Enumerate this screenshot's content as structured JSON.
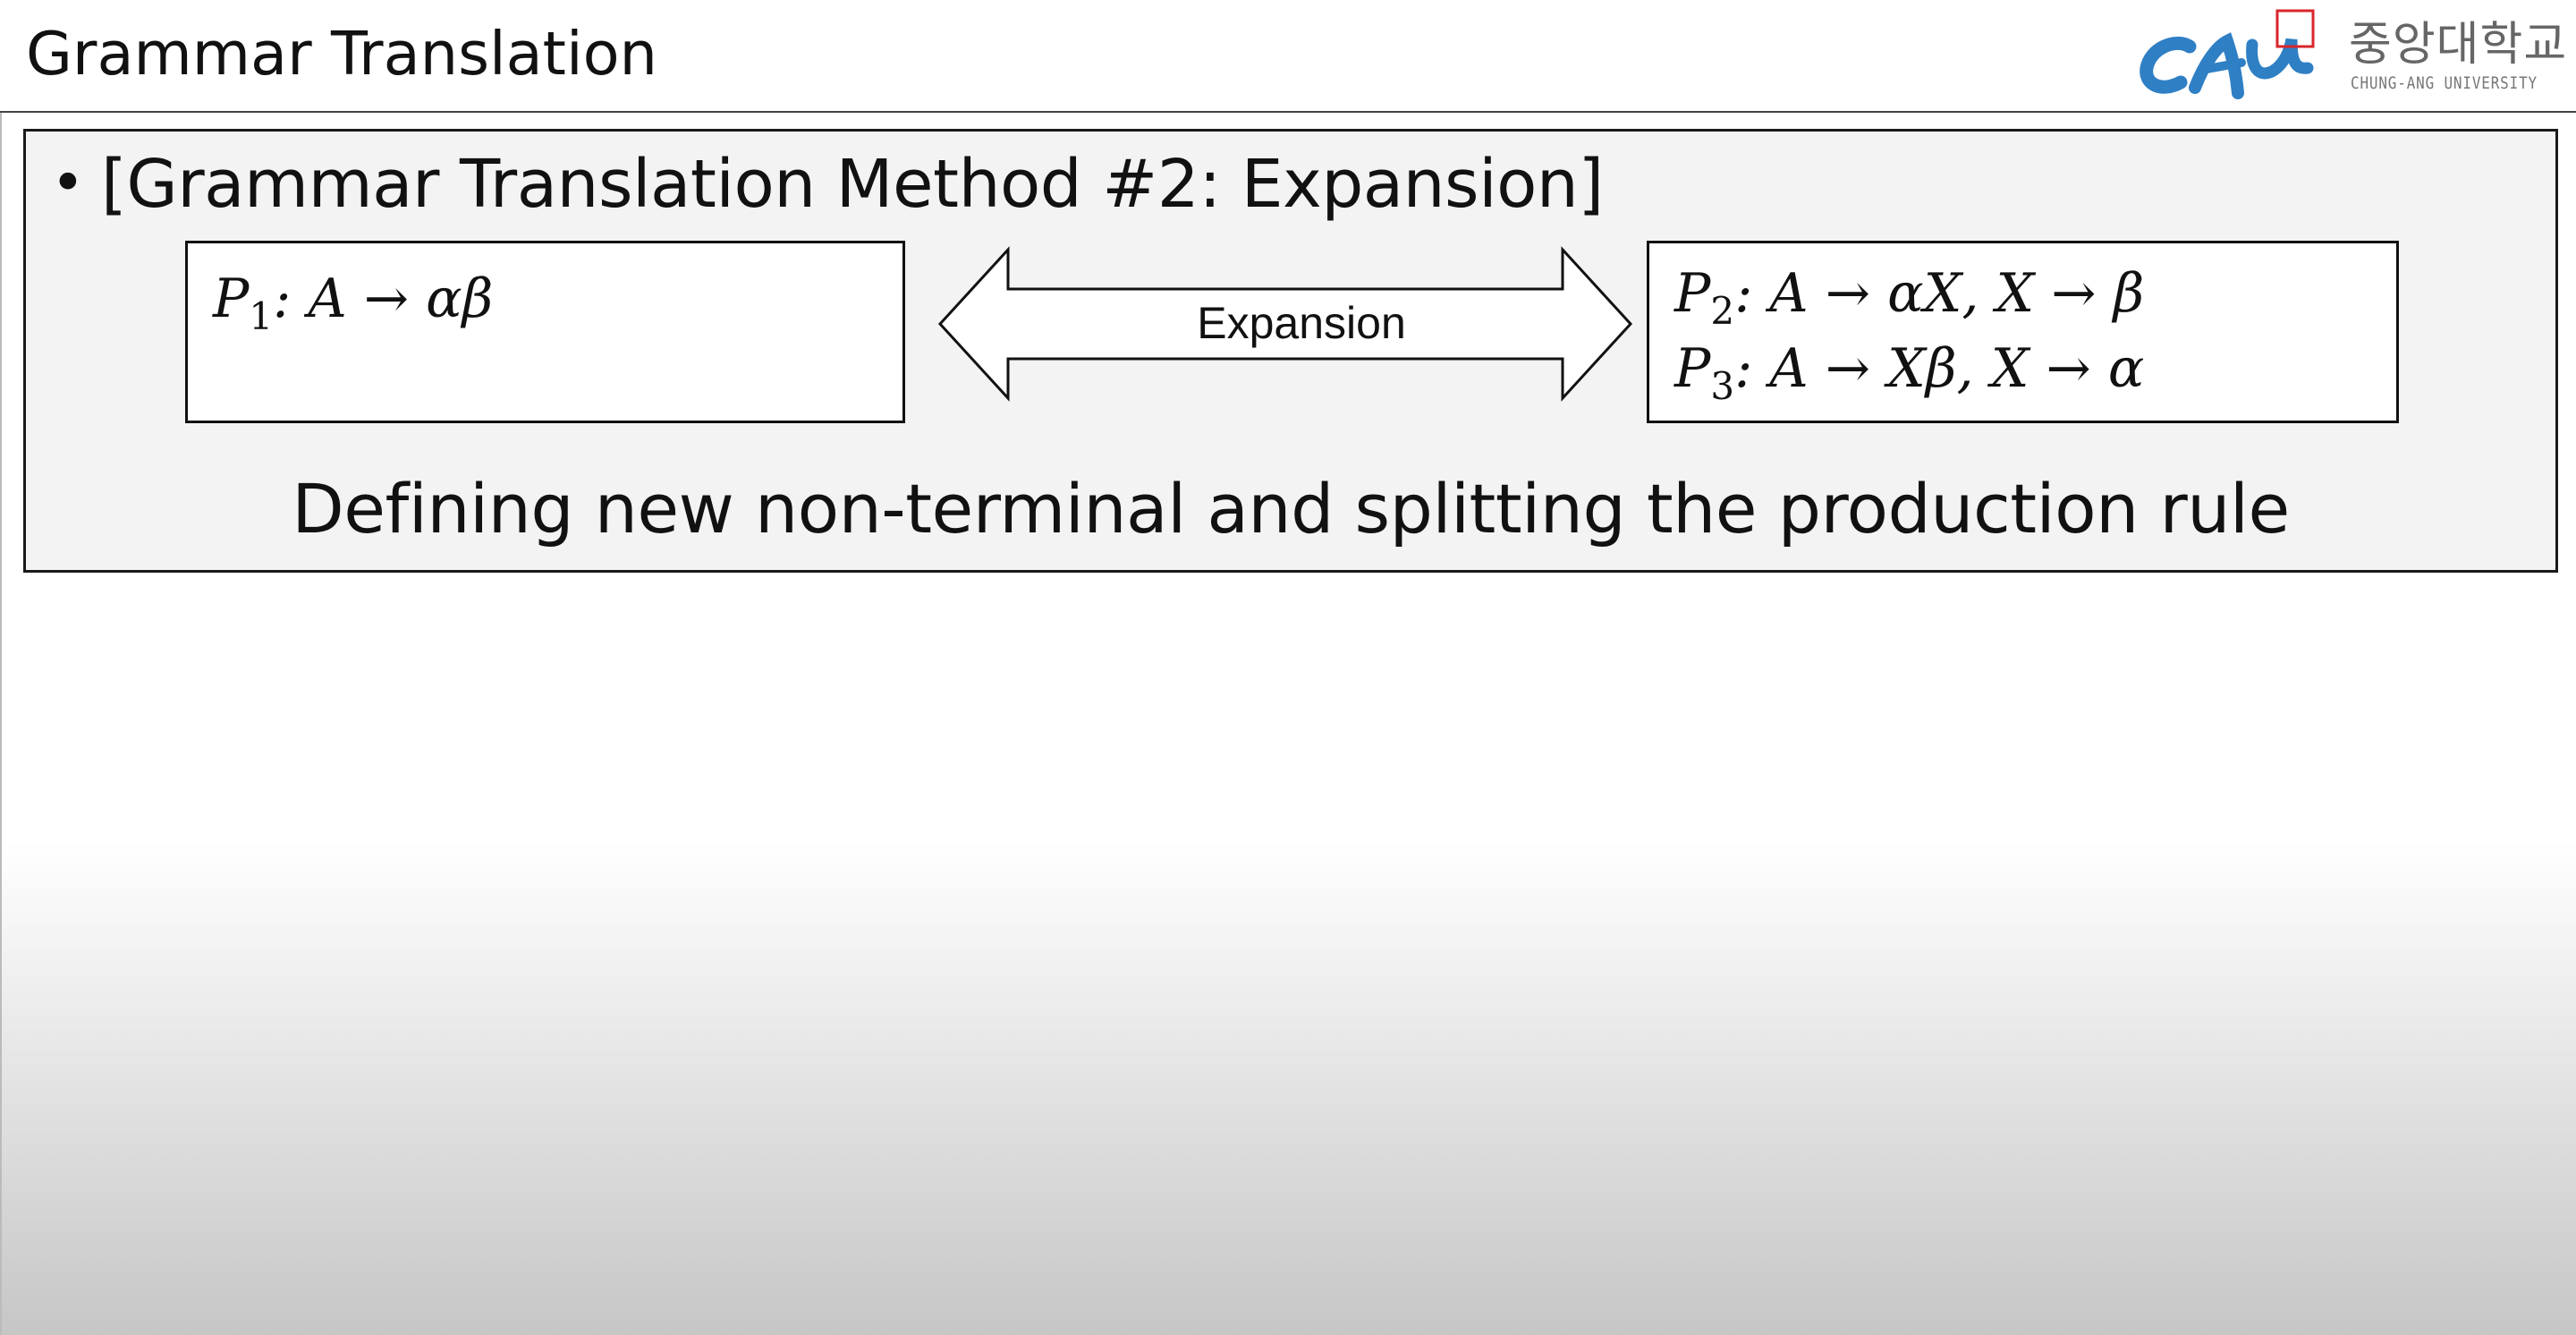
{
  "slide": {
    "title": "Grammar Translation"
  },
  "logo": {
    "wordmark": "CAU",
    "korean_name": "중앙대학교",
    "english_name": "CHUNG-ANG UNIVERSITY",
    "brand_color": "#2f7fc4",
    "accent_color": "#d9262b"
  },
  "content": {
    "bullet": "•",
    "heading": "[Grammar Translation Method #2: Expansion]",
    "left_rule": {
      "label": "P",
      "index": "1",
      "body": ": A → αβ"
    },
    "right_rules": [
      {
        "label": "P",
        "index": "2",
        "body": ": A → αX, X → β"
      },
      {
        "label": "P",
        "index": "3",
        "body": ": A → Xβ, X → α"
      }
    ],
    "arrow_label": "Expansion",
    "caption": "Defining new non-terminal and splitting the production rule"
  },
  "colors": {
    "panel_background": "#f3f3f3",
    "border": "#1a1a1a"
  }
}
